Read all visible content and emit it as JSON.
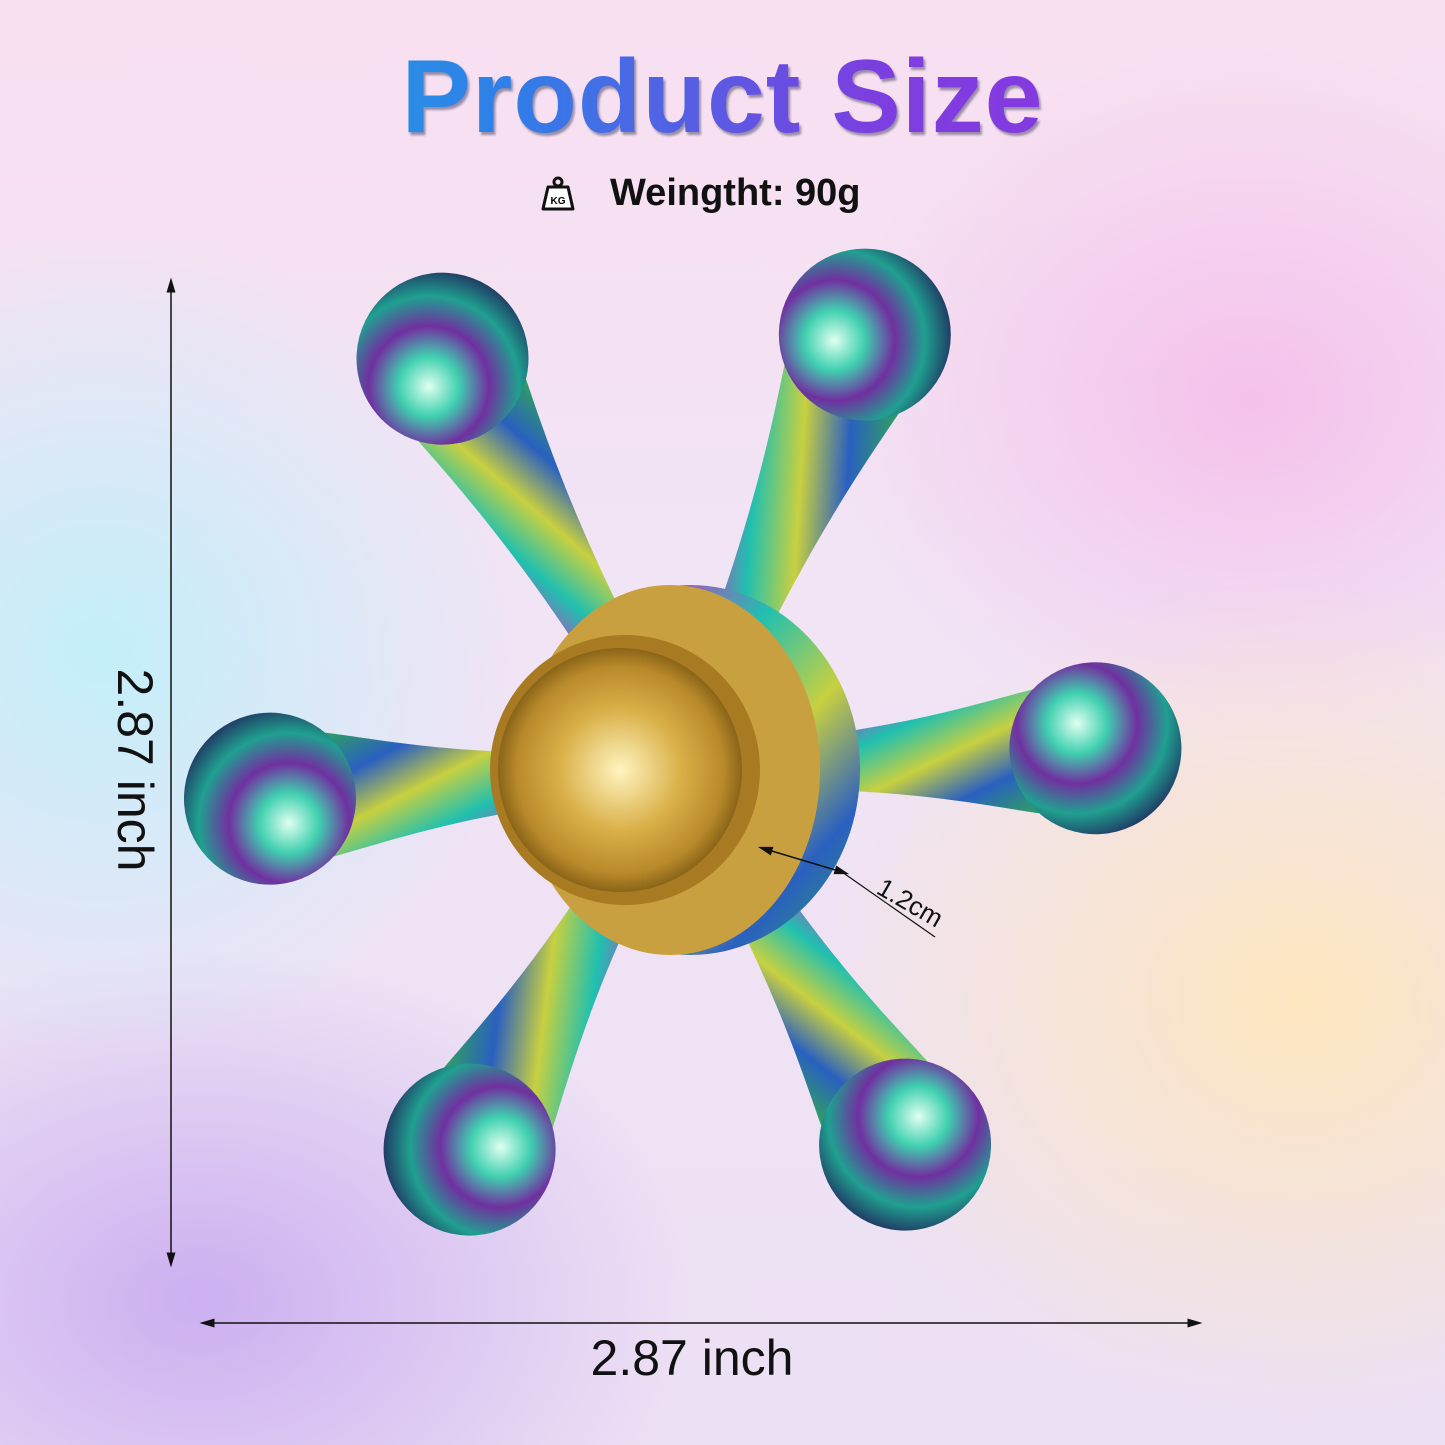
{
  "title": "Product Size",
  "weight": {
    "icon": "kg-weight-icon",
    "icon_text": "KG",
    "label": "Weingtht: 90g"
  },
  "dimensions": {
    "height": "2.87 inch",
    "width": "2.87 inch",
    "bearing_thickness": "1.2cm"
  },
  "colors": {
    "title_start": "#19c4e0",
    "title_end": "#9a2fe0",
    "cap": "#d4a838"
  }
}
